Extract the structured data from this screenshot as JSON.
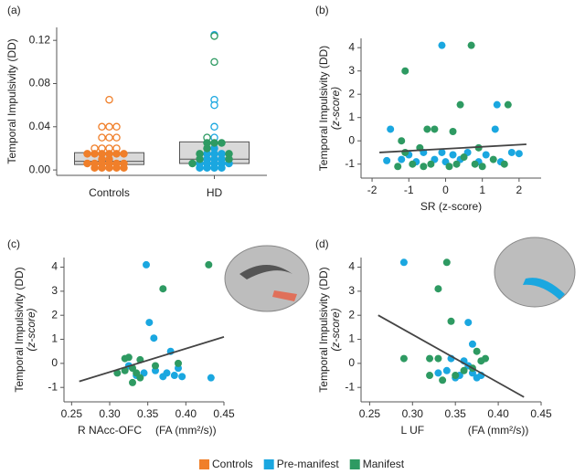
{
  "chart_data": [
    {
      "type": "strip",
      "panel_label": "(a)",
      "y_label": "Temporal Impulsivity (DD)",
      "categories": [
        "Controls",
        "HD"
      ],
      "ylim": [
        -0.005,
        0.132
      ],
      "yticks": [
        {
          "value": 0,
          "label": "0.00"
        },
        0.04,
        0.08,
        0.12
      ],
      "boxes": [
        {
          "q1": 0.005,
          "median": 0.008,
          "q3": 0.016
        },
        {
          "q1": 0.006,
          "median": 0.01,
          "q3": 0.026
        }
      ],
      "series": [
        {
          "name": "Controls",
          "color": "#f07f2a",
          "values": [
            0.065,
            0.04,
            0.04,
            0.04,
            0.03,
            0.03,
            0.03,
            0.02,
            0.02,
            0.02,
            0.02,
            0.015,
            0.015,
            0.015,
            0.015,
            0.015,
            0.015,
            0.01,
            0.01,
            0.006,
            0.006,
            0.006,
            0.006,
            0.006,
            0.006,
            0.002,
            0.002,
            0.002,
            0.002,
            0.002
          ]
        },
        {
          "name": "Pre-manifest",
          "color": "#1aa7e0",
          "values": [
            0.125,
            0.065,
            0.06,
            0.04,
            0.03,
            0.02,
            0.015,
            0.015,
            0.015,
            0.01,
            0.01,
            0.01,
            0.006,
            0.006,
            0.006,
            0.006,
            0.006,
            0.002,
            0.002,
            0.002,
            0.002
          ]
        },
        {
          "name": "Manifest",
          "color": "#2e9a62",
          "values": [
            0.124,
            0.1,
            0.03,
            0.025,
            0.025,
            0.025,
            0.02,
            0.015,
            0.015,
            0.01,
            0.01,
            0.006
          ]
        }
      ]
    },
    {
      "type": "scatter",
      "panel_label": "(b)",
      "y_label": "Temporal Impulsivity (DD)",
      "y_sublabel": "(z-score)",
      "x_label": "SR (z-score)",
      "xlim": [
        -2.3,
        2.6
      ],
      "xticks": [
        -2,
        -1,
        0,
        1,
        2
      ],
      "ylim": [
        -1.6,
        4.4
      ],
      "yticks": [
        -1,
        0,
        1,
        2,
        3,
        4
      ],
      "regression": {
        "x": [
          -1.8,
          2.2
        ],
        "y": [
          -0.5,
          -0.15
        ]
      },
      "series": [
        {
          "color": "#1aa7e0",
          "x": [
            -1.5,
            -0.1,
            1.4,
            1.35,
            -1.2,
            -1,
            -0.8,
            -0.6,
            -0.3,
            -0.1,
            0,
            0.2,
            0.4,
            0.6,
            0.9,
            1.1,
            1.5,
            1.8,
            2,
            -1.6
          ],
          "values": [
            0.5,
            4.1,
            1.55,
            0.5,
            -0.8,
            -0.6,
            -0.9,
            -0.5,
            -0.8,
            -0.5,
            -0.9,
            -0.6,
            -0.8,
            -0.5,
            -0.9,
            -0.6,
            -0.9,
            -0.5,
            -0.55,
            -0.85
          ]
        },
        {
          "color": "#2e9a62",
          "x": [
            0.7,
            -1.1,
            0.4,
            1.7,
            -0.3,
            -0.5,
            0.2,
            -1.1,
            -1.3,
            -0.9,
            -0.6,
            -0.4,
            0.1,
            0.3,
            0.5,
            0.8,
            1,
            1.3,
            1.6,
            -1.2,
            -0.7,
            0.9
          ],
          "values": [
            4.1,
            3,
            1.55,
            1.55,
            0.5,
            0.5,
            0.4,
            -0.5,
            -1.1,
            -1,
            -1.1,
            -1,
            -1.1,
            -1,
            -0.7,
            -1,
            -1.1,
            -0.8,
            -1,
            0,
            -0.3,
            -0.3
          ]
        }
      ]
    },
    {
      "type": "scatter",
      "panel_label": "(c)",
      "y_label": "Temporal Impulsivity (DD)",
      "y_sublabel": "(z-score)",
      "x_label": "R NAcc-OFC",
      "x_unit": "(FA (mm²/s))",
      "xlim": [
        0.24,
        0.45
      ],
      "xticks": [
        0.25,
        {
          "value": 0.3,
          "label": "0.30"
        },
        0.35,
        {
          "value": 0.4,
          "label": "0.40"
        },
        0.45
      ],
      "ylim": [
        -1.6,
        4.4
      ],
      "yticks": [
        -1,
        0,
        1,
        2,
        3,
        4
      ],
      "regression": {
        "x": [
          0.26,
          0.45
        ],
        "y": [
          -0.75,
          1.1
        ]
      },
      "series": [
        {
          "color": "#1aa7e0",
          "x": [
            0.348,
            0.352,
            0.358,
            0.38,
            0.433,
            0.335,
            0.345,
            0.36,
            0.37,
            0.375,
            0.385,
            0.39,
            0.325,
            0.395
          ],
          "values": [
            4.1,
            1.7,
            1.05,
            0.5,
            -0.6,
            -0.5,
            -0.4,
            -0.3,
            -0.55,
            -0.4,
            -0.5,
            -0.2,
            -0.1,
            -0.55
          ]
        },
        {
          "color": "#2e9a62",
          "x": [
            0.43,
            0.37,
            0.32,
            0.325,
            0.34,
            0.31,
            0.32,
            0.33,
            0.335,
            0.34,
            0.36,
            0.39,
            0.33
          ],
          "values": [
            4.1,
            3.1,
            0.2,
            0.25,
            0.15,
            -0.4,
            -0.3,
            -0.2,
            -0.4,
            -0.6,
            -0.1,
            0,
            -0.8
          ]
        }
      ]
    },
    {
      "type": "scatter",
      "panel_label": "(d)",
      "y_label": "Temporal Impulsivity (DD)",
      "y_sublabel": "(z-score)",
      "x_label": "L UF",
      "x_unit": "(FA (mm²/s))",
      "xlim": [
        0.24,
        0.45
      ],
      "xticks": [
        0.25,
        {
          "value": 0.3,
          "label": "0.30"
        },
        0.35,
        {
          "value": 0.4,
          "label": "0.40"
        },
        0.45
      ],
      "ylim": [
        -1.6,
        4.4
      ],
      "yticks": [
        -1,
        0,
        1,
        2,
        3,
        4
      ],
      "regression": {
        "x": [
          0.26,
          0.43
        ],
        "y": [
          2,
          -1.4
        ]
      },
      "series": [
        {
          "color": "#1aa7e0",
          "x": [
            0.29,
            0.365,
            0.37,
            0.345,
            0.36,
            0.365,
            0.37,
            0.375,
            0.38,
            0.35,
            0.34,
            0.355,
            0.33
          ],
          "values": [
            4.2,
            1.7,
            0.8,
            0.2,
            0.1,
            -0.1,
            -0.4,
            -0.6,
            -0.5,
            -0.6,
            -0.3,
            -0.5,
            -0.4
          ]
        },
        {
          "color": "#2e9a62",
          "x": [
            0.34,
            0.33,
            0.345,
            0.29,
            0.32,
            0.33,
            0.375,
            0.37,
            0.38,
            0.32,
            0.335,
            0.35,
            0.385,
            0.36
          ],
          "values": [
            4.2,
            3.1,
            1.75,
            0.2,
            0.2,
            0.2,
            0.5,
            -0.2,
            0.1,
            -0.5,
            -0.7,
            -0.5,
            0.2,
            -0.3
          ]
        }
      ]
    }
  ]
}
